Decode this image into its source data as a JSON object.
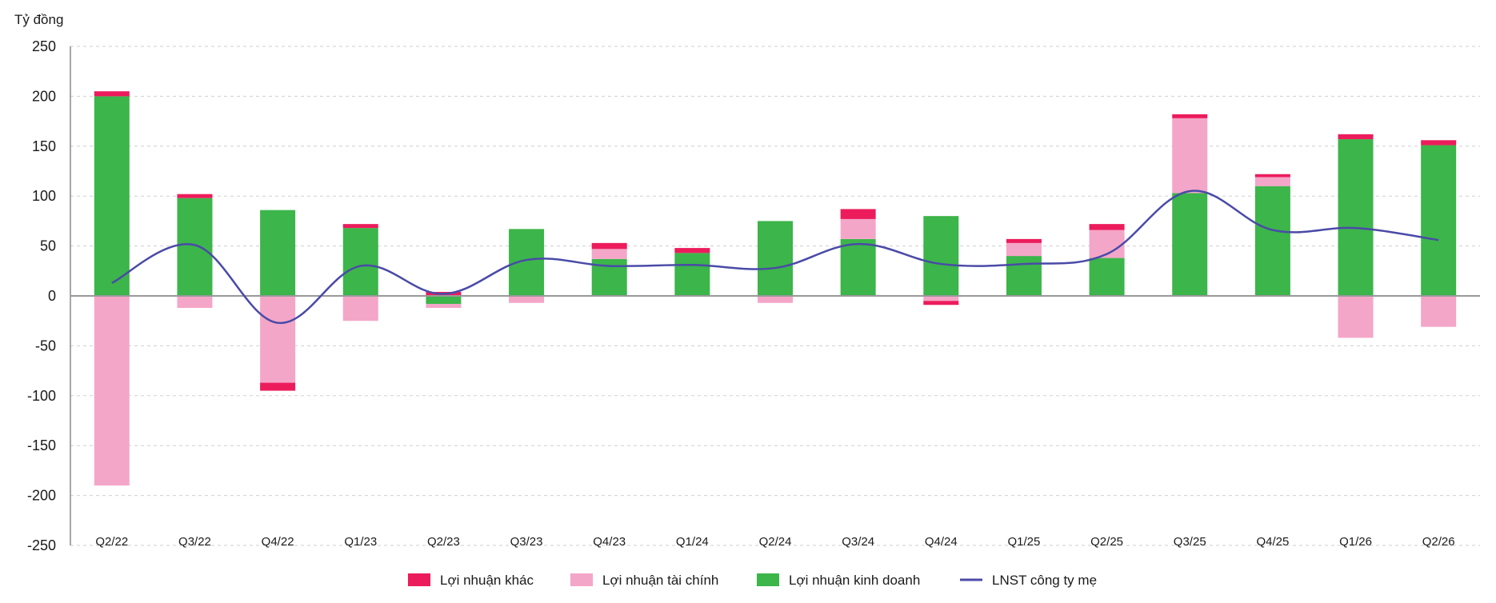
{
  "chart_data": {
    "type": "bar",
    "stacked": true,
    "unit_label": "Tỷ đồng",
    "ylim": [
      -250,
      250
    ],
    "yticks": [
      250,
      200,
      150,
      100,
      50,
      0,
      -50,
      -100,
      -150,
      -200,
      -250
    ],
    "grid": true,
    "legend_position": "bottom",
    "categories": [
      "Q2/22",
      "Q3/22",
      "Q4/22",
      "Q1/23",
      "Q2/23",
      "Q3/23",
      "Q4/23",
      "Q1/24",
      "Q2/24",
      "Q3/24",
      "Q4/24",
      "Q1/25",
      "Q2/25",
      "Q3/25",
      "Q4/25",
      "Q1/26",
      "Q2/26"
    ],
    "series": [
      {
        "key": "kinh_doanh",
        "name": "Lợi nhuận kinh doanh",
        "kind": "bar",
        "color": "#3cb54a",
        "values": [
          200,
          98,
          86,
          68,
          -8,
          67,
          37,
          43,
          75,
          57,
          80,
          40,
          38,
          103,
          110,
          157,
          151
        ]
      },
      {
        "key": "tai_chinh",
        "name": "Lợi nhuận tài chính",
        "kind": "bar",
        "color": "#f4a6c8",
        "values": [
          -190,
          -12,
          -87,
          -25,
          -4,
          -7,
          10,
          0,
          -7,
          20,
          -5,
          13,
          28,
          75,
          9,
          -42,
          -31
        ]
      },
      {
        "key": "khac",
        "name": "Lợi nhuận khác",
        "kind": "bar",
        "color": "#ec1c5c",
        "values": [
          5,
          4,
          -8,
          4,
          4,
          0,
          6,
          5,
          0,
          10,
          -4,
          4,
          6,
          4,
          3,
          5,
          5
        ]
      },
      {
        "key": "lnst",
        "name": "LNST công ty mẹ",
        "kind": "line",
        "color": "#4a4aa8",
        "values": [
          13,
          51,
          -27,
          30,
          2,
          36,
          30,
          31,
          28,
          52,
          32,
          32,
          42,
          105,
          66,
          68,
          56
        ]
      }
    ]
  }
}
